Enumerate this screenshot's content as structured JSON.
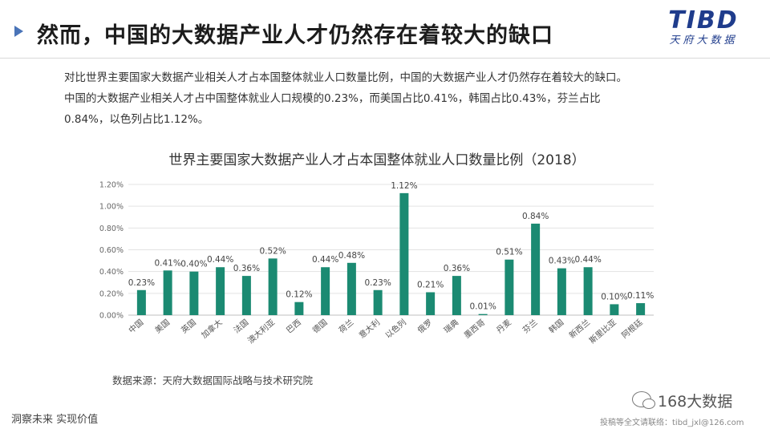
{
  "header": {
    "title": "然而，中国的大数据产业人才仍然存在着较大的缺口",
    "logo_text": "TIBD",
    "logo_subtext": "天府大数据"
  },
  "intro": {
    "line1": "对比世界主要国家大数据产业相关人才占本国整体就业人口数量比例，中国的大数据产业人才仍然存在着较大的缺口。",
    "line2": "中国的大数据产业相关人才占中国整体就业人口规模的0.23%，而美国占比0.41%，韩国占比0.43%，芬兰占比",
    "line3": "0.84%，以色列占比1.12%。"
  },
  "chart_data": {
    "type": "bar",
    "title": "世界主要国家大数据产业人才占本国整体就业人口数量比例（2018）",
    "categories": [
      "中国",
      "美国",
      "英国",
      "加拿大",
      "法国",
      "澳大利亚",
      "巴西",
      "德国",
      "荷兰",
      "意大利",
      "以色列",
      "俄罗",
      "瑞典",
      "墨西哥",
      "丹麦",
      "芬兰",
      "韩国",
      "新西兰",
      "斯里比亚",
      "阿根廷"
    ],
    "values": [
      0.23,
      0.41,
      0.4,
      0.44,
      0.36,
      0.52,
      0.12,
      0.44,
      0.48,
      0.23,
      1.12,
      0.21,
      0.36,
      0.01,
      0.51,
      0.84,
      0.43,
      0.44,
      0.1,
      0.11
    ],
    "value_labels": [
      "0.23%",
      "0.41%",
      "0.40%",
      "0.44%",
      "0.36%",
      "0.52%",
      "0.12%",
      "0.44%",
      "0.48%",
      "0.23%",
      "1.12%",
      "0.21%",
      "0.36%",
      "0.01%",
      "0.51%",
      "0.84%",
      "0.43%",
      "0.44%",
      "0.10%",
      "0.11%"
    ],
    "ylim": [
      0,
      1.2
    ],
    "yticks": [
      0,
      0.2,
      0.4,
      0.6,
      0.8,
      1.0,
      1.2
    ],
    "ytick_labels": [
      "0.00%",
      "0.20%",
      "0.40%",
      "0.60%",
      "0.80%",
      "1.00%",
      "1.20%"
    ],
    "grid": true,
    "bar_color": "#1b8a72"
  },
  "source": "数据来源：天府大数据国际战略与技术研究院",
  "footer": {
    "slogan": "洞察未来 实现价值",
    "watermark_name": "168大数据",
    "watermark_sub": "投稿等全文请联络：tibd_jxl@126.com"
  }
}
